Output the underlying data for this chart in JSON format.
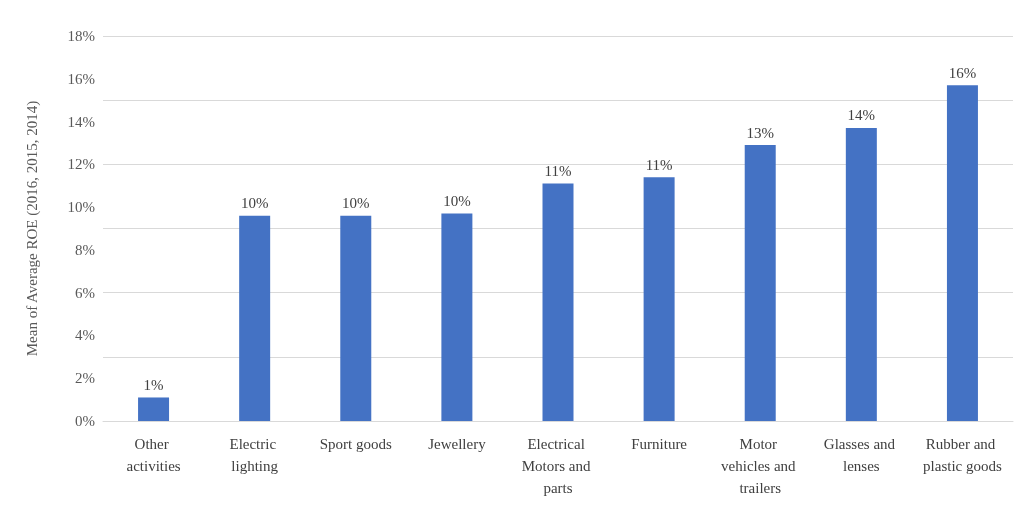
{
  "chart_data": {
    "type": "bar",
    "ylabel": "Mean of Average ROE (2016, 2015, 2014)",
    "categories": [
      "Other activities",
      "Electric lighting",
      "Sport goods",
      "Jewellery",
      "Electrical Motors and parts",
      "Furniture",
      "Motor vehicles and trailers",
      "Glasses and lenses",
      "Rubber and plastic goods"
    ],
    "values": [
      1.1,
      9.6,
      9.6,
      9.7,
      11.1,
      11.4,
      12.9,
      13.7,
      15.7
    ],
    "value_labels": [
      "1%",
      "10%",
      "10%",
      "10%",
      "11%",
      "11%",
      "13%",
      "14%",
      "16%"
    ],
    "color": "#4472c4",
    "ylim": [
      0,
      18
    ],
    "yticks": [
      {
        "value": 0,
        "label": "0%"
      },
      {
        "value": 2,
        "label": "2%"
      },
      {
        "value": 4,
        "label": "4%"
      },
      {
        "value": 6,
        "label": "6%"
      },
      {
        "value": 8,
        "label": "8%"
      },
      {
        "value": 10,
        "label": "10%"
      },
      {
        "value": 12,
        "label": "12%"
      },
      {
        "value": 14,
        "label": "14%"
      },
      {
        "value": 16,
        "label": "16%"
      },
      {
        "value": 18,
        "label": "18%"
      }
    ],
    "grid": "y"
  }
}
